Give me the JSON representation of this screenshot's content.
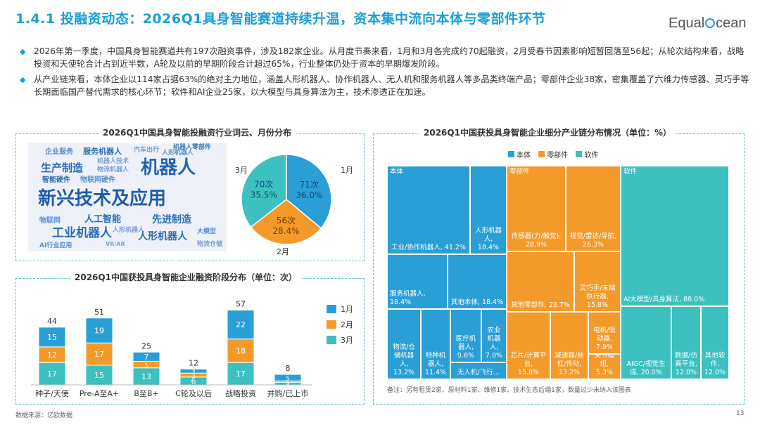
{
  "header": {
    "title": "1.4.1 投融资动态：2026Q1具身智能赛道持续升温，资本集中流向本体与零部件环节",
    "logo_left": "Equal",
    "logo_right": "cean"
  },
  "bullets": [
    "2026年第一季度，中国具身智能赛道共有197次融资事件，涉及182家企业。从月度节奏来看，1月和3月各完成约70起融资，2月受春节因素影响短暂回落至56起；从轮次结构来看，战略投资和天使轮合计占到近半数，A轮及以前的早期阶段合计超过65%，行业整体仍处于资本的早期爆发阶段。",
    "从产业链来看，本体企业以114家占据63%的绝对主力地位，涵盖人形机器人、协作机器人、无人机和服务机器人等多品类终端产品；零部件企业38家，密集覆盖了六维力传感器、灵巧手等长期面临国产替代需求的核心环节；软件和AI企业25家，以大模型与具身算法为主，技术渗透正在加速。"
  ],
  "word_cloud": {
    "panel_title": "2026Q1中国具身智能投融资行业词云、月份分布",
    "words": [
      "企业服务",
      "服务机器人",
      "汽车出行",
      "人形机器人",
      "机器人零部件",
      "生产制造",
      "机器人技术",
      "物流机器人",
      "机器人",
      "智能硬件",
      "物联网硬件",
      "新兴技术及应用",
      "物联网",
      "人工智能",
      "先进制造",
      "工业机器人",
      "人形机器人",
      "人形机器人",
      "AI行业应用",
      "大模型",
      "VR/AR",
      "物流仓储"
    ]
  },
  "chart_data": [
    {
      "type": "pie",
      "title": "2026Q1中国具身智能投融资月份分布",
      "categories": [
        "1月",
        "2月",
        "3月"
      ],
      "values": [
        71,
        56,
        70
      ],
      "value_labels": [
        "71次",
        "56次",
        "70次"
      ],
      "percent_labels": [
        "36.0%",
        "28.4%",
        "35.5%"
      ],
      "colors": [
        "#2a9fd6",
        "#f39a2b",
        "#3cc0c0"
      ]
    },
    {
      "type": "bar",
      "title": "2026Q1中国获投具身智能企业融资阶段分布（单位：次）",
      "categories": [
        "种子/天使",
        "Pre-A至A+",
        "B至B+",
        "C轮及以后",
        "战略投资",
        "并购/已上市"
      ],
      "series": [
        {
          "name": "3月",
          "values": [
            17,
            15,
            13,
            6,
            17,
            2
          ],
          "color": "#3cc0c0"
        },
        {
          "name": "2月",
          "values": [
            12,
            17,
            5,
            3,
            18,
            1
          ],
          "color": "#f39a2b"
        },
        {
          "name": "1月",
          "values": [
            15,
            19,
            7,
            3,
            22,
            5
          ],
          "color": "#2a9fd6"
        }
      ],
      "totals": [
        44,
        51,
        25,
        12,
        57,
        8
      ],
      "legend": [
        "1月",
        "2月",
        "3月"
      ]
    },
    {
      "type": "treemap",
      "title": "2026Q1中国获投具身智能企业细分产业链分布情况（单位：%）",
      "legend": [
        {
          "name": "本体",
          "color": "#2a9fd6"
        },
        {
          "name": "零部件",
          "color": "#f39a2b"
        },
        {
          "name": "软件",
          "color": "#3cc0c0"
        }
      ],
      "groups": [
        {
          "name": "本体",
          "share": 63,
          "items": [
            {
              "name": "工业/协作机器人",
              "value": "41.2%"
            },
            {
              "name": "人形机器人",
              "value": "18.4%"
            },
            {
              "name": "服务机器人",
              "value": "18.4%"
            },
            {
              "name": "其他本体",
              "value": "18.4%"
            },
            {
              "name": "物流/仓储机器人",
              "value": "13.2%"
            },
            {
              "name": "特种机器人",
              "value": "11.4%"
            },
            {
              "name": "医疗机器人",
              "value": "9.6%"
            },
            {
              "name": "农业机器人",
              "value": "7.0%"
            },
            {
              "name": "无人机/飞行…",
              "value": ""
            }
          ]
        },
        {
          "name": "零部件",
          "share": 21,
          "items": [
            {
              "name": "传感器(力/触觉)",
              "value": "28.9%"
            },
            {
              "name": "视觉/雷达/导航",
              "value": "26.3%"
            },
            {
              "name": "其他零部件",
              "value": "23.7%"
            },
            {
              "name": "灵巧手/末端执行器",
              "value": "15.8%"
            },
            {
              "name": "芯片/计算平台",
              "value": "15.8%"
            },
            {
              "name": "减速器/丝杠/传动",
              "value": "13.2%"
            },
            {
              "name": "电机/驱动器",
              "value": "7.9%"
            },
            {
              "name": "关节模组",
              "value": "5.3%"
            }
          ]
        },
        {
          "name": "软件",
          "share": 14,
          "items": [
            {
              "name": "AI大模型/具身算法",
              "value": "88.0%"
            },
            {
              "name": "AIGC/视觉生成",
              "value": "20.0%"
            },
            {
              "name": "数据/仿真平台",
              "value": "12.0%"
            },
            {
              "name": "其他软件",
              "value": "12.0%"
            }
          ]
        }
      ]
    }
  ],
  "footnote": "备注：另有租赁2家、原材料1家、维修1家、技术生态后端1家，数量过少未纳入该图表",
  "source": "数据来源：亿欧数据",
  "page_number": "13"
}
